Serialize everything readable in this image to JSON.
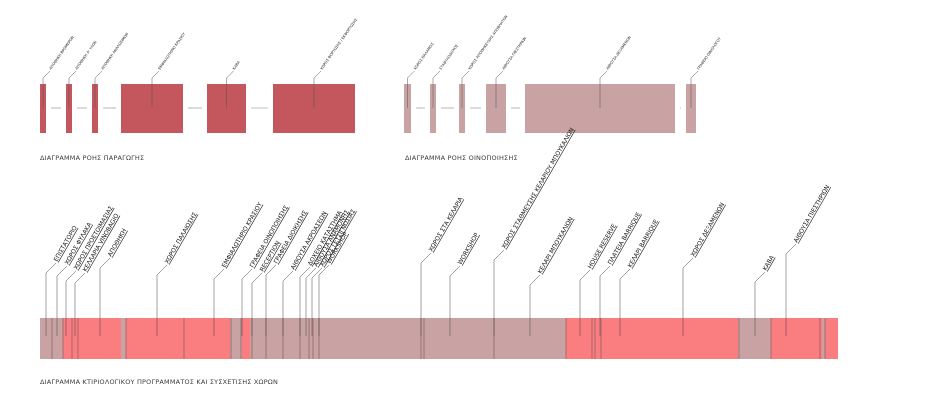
{
  "diagrams": {
    "production": {
      "caption": "ΔΙΑΓΡΑΜΜΑ ΡΟΗΣ ΠΑΡΑΓΩΓΗΣ",
      "color": "#c4575e",
      "labels": [
        "ΑΠΟΘΗΚΗ ΒΡΟΜΕΡΩΝ",
        "ΑΠΟΘΗΚΗ Α' ΥΛΩΝ",
        "ΑΠΟΘΗΚΗ ΑΝΑΛΩΣΙΜΩΝ",
        "ΕΜΦΙΑΛΩΤΗΡΙΟ ΚΡΑΣΙΟΥ",
        "ΚΑΒΑ",
        "ΧΩΡΟΣ ΦΟΡΤΩΣΗΣ / ΕΚΦΟΡΤΩΣΗΣ"
      ]
    },
    "winemaking": {
      "caption": "ΔΙΑΓΡΑΜΜΑ ΡΟΗΣ ΟΙΝΟΠΟΙΗΣΗΣ",
      "color": "#c9a3a4",
      "labels": [
        "ΧΩΡΟΣ ΘΑΛΑΜΟΣ",
        "ΣΤΑΦΥΛΟΔΟΧΟΣ",
        "ΧΩΡΟΣ ΑΠΟΘΗΚΕΥΣΗΣ ΑΠΟΒΛΗΤΩΝ",
        "ΑΙΘΟΥΣΑ ΠΙΕΣΤΗΡΙΩΝ",
        "ΑΙΘΟΥΣΑ ΔΕΞΑΜΕΝΩΝ",
        "ΓΡΑΦΕΙΟ ΟΙΝΟΛΟΓΟΥ"
      ]
    },
    "program": {
      "caption": "ΔΙΑΓΡΑΜΜΑ ΚΤΙΡΙΟΛΟΓΙΚΟΥ ΠΡΟΓΡΑΜΜΑΤΟΣ ΚΑΙ ΣΥΣΧΕΤΙΣΗΣ ΧΩΡΩΝ",
      "colors": {
        "muted": "#c9a3a4",
        "red": "#fa7d80",
        "line": "#8a5b5c"
      },
      "labels": [
        "ΕΠΙΣΤΑΤΟΡΙΟ",
        "ΧΩΡΟΣ ΦΥΛΑΚΑ",
        "ΧΩΡΟΣ ΠΡΟΕΤΟΙΜΑΣΙΑΣ",
        "ΚΕΛΛΑΡΙΑ VINOBAGIO",
        "ΑΠΟΘΗΚΗ",
        "ΧΩΡΟΣ ΠΑΛΑΙΩΣΗΣ",
        "ΕΜΦΙΑΛΩΤΗΡΙΟ ΚΡΑΣΙΟΥ",
        "ΓΡΑΦΕΙΑ ΟΙΝΟΠΟΙΗΣΗΣ",
        "RECEPTION",
        "ΓΡΑΦΕΙΑ ΔΙΟΙΚΗΣΗΣ",
        "ΑΙΘΟΥΣΑ ΑΚΡΟΑΣΕΩΝ",
        "ΔΟΧΕΙΟ ΚΑΤΑΣΤΗΜΑ",
        "ΑΙΘΟΥΣΑ ΑΝΑΜΟΝΗΣ",
        "ΧΩΡΟΣ ΓΕΥΣΙΓΝΩΣΙΑΣ",
        "WORKSHOP",
        "ΧΩΡΟΣ ΣΤΑ ΚΕΛΑΡΙΑ",
        "WORKSHOP",
        "ΧΩΡΟΣ ΣΤΑΘΜΕΥΣΗΣ ΚΕΛΑΡΙΟΥ ΜΠΟΥΚΑΛΙΩΝ",
        "ΚΕΛΑΡΙ ΜΠΟΥΚΑΛΙΩΝ",
        "HOUSE RESERVE",
        "ΠΛΑΤΕΙΑ BARRIQUE",
        "ΚΕΛΑΡΙ BARRIQUE",
        "ΧΩΡΟΣ ΔΕΞΑΜΕΝΩΝ",
        "ΚΑΒΑ",
        "ΑΙΘΟΥΣΑ ΠΙΕΣΤΗΡΙΩΝ"
      ]
    }
  }
}
